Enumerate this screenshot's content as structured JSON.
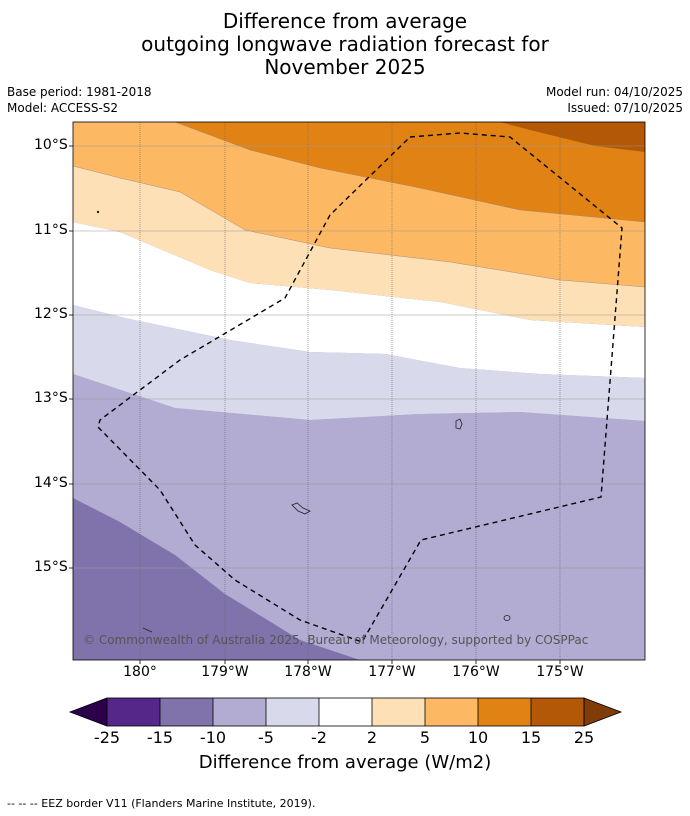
{
  "title": {
    "line1": "Difference from average",
    "line2": "outgoing longwave radiation forecast for",
    "line3": "November 2025"
  },
  "meta": {
    "base_period": "Base period: 1981-2018",
    "model": "Model: ACCESS-S2",
    "model_run": "Model run: 04/10/2025",
    "issued": "Issued: 07/10/2025"
  },
  "map": {
    "lat_ticks": [
      "10°S",
      "11°S",
      "12°S",
      "13°S",
      "14°S",
      "15°S"
    ],
    "lon_ticks": [
      "180°",
      "179°W",
      "178°W",
      "177°W",
      "176°W",
      "175°W"
    ],
    "copyright": "© Commonwealth of Australia 2025, Bureau of Meteorology, supported by COSPPac",
    "bands": [
      {
        "range": "15 to 25",
        "color": "#b35806"
      },
      {
        "range": "10 to 15",
        "color": "#e08214"
      },
      {
        "range": "5 to 10",
        "color": "#fdb863"
      },
      {
        "range": "2 to 5",
        "color": "#fee0b6"
      },
      {
        "range": "-2 to 2",
        "color": "#ffffff"
      },
      {
        "range": "-5 to -2",
        "color": "#d8daeb"
      },
      {
        "range": "-10 to -5",
        "color": "#b2abd2"
      },
      {
        "range": "-15 to -10",
        "color": "#8073ac"
      }
    ]
  },
  "colorbar": {
    "labels": [
      "-25",
      "-15",
      "-10",
      "-5",
      "-2",
      "2",
      "5",
      "10",
      "15",
      "25"
    ],
    "colors": [
      "#2d004b",
      "#542788",
      "#8073ac",
      "#b2abd2",
      "#d8daeb",
      "#ffffff",
      "#fee0b6",
      "#fdb863",
      "#e08214",
      "#b35806",
      "#7f3b08"
    ],
    "title": "Difference from average (W/m2)"
  },
  "footer": "--  --  -- EEZ border V11 (Flanders Marine Institute, 2019)."
}
